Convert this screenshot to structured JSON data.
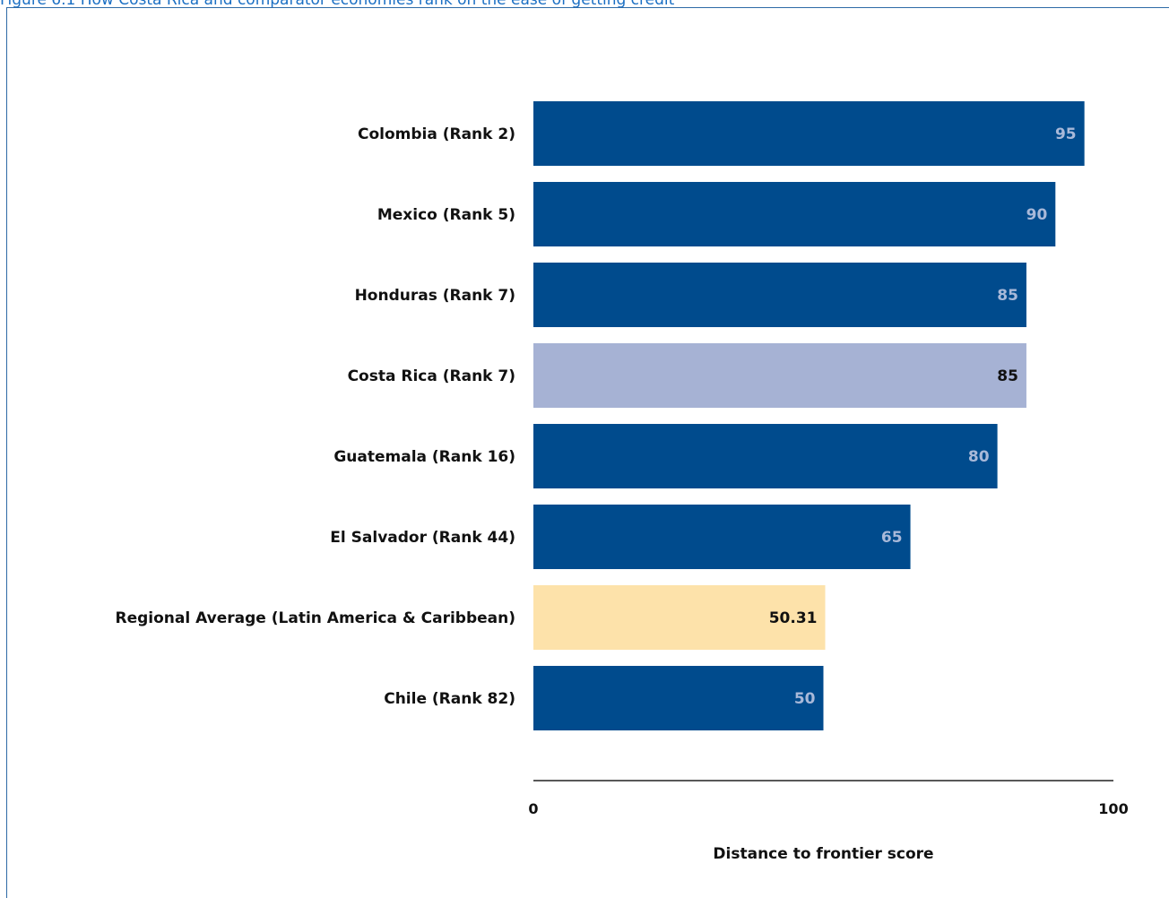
{
  "chart_data": {
    "type": "bar",
    "orientation": "horizontal",
    "title": "Figure 6.1 How Costa Rica and comparator economies rank on the ease of getting credit",
    "xlabel": "Distance to frontier score",
    "ylabel": "",
    "xlim": [
      0,
      100
    ],
    "ticks": [
      "0",
      "100"
    ],
    "categories": [
      "Colombia (Rank 2)",
      "Mexico (Rank 5)",
      "Honduras (Rank 7)",
      "Costa Rica (Rank 7)",
      "Guatemala (Rank 16)",
      "El Salvador (Rank 44)",
      "Regional Average (Latin America & Caribbean)",
      "Chile (Rank 82)"
    ],
    "values": [
      95,
      90,
      85,
      85,
      80,
      65,
      50.31,
      50
    ],
    "value_labels": [
      "95",
      "90",
      "85",
      "85",
      "80",
      "65",
      "50.31",
      "50"
    ],
    "colors": [
      "#004b8d",
      "#004b8d",
      "#004b8d",
      "#a6b2d4",
      "#004b8d",
      "#004b8d",
      "#fde2aa",
      "#004b8d"
    ],
    "label_colors": [
      "#a9b9d9",
      "#a9b9d9",
      "#a9b9d9",
      "#111111",
      "#a9b9d9",
      "#a9b9d9",
      "#111111",
      "#a9b9d9"
    ],
    "grid": false,
    "legend": "none"
  }
}
